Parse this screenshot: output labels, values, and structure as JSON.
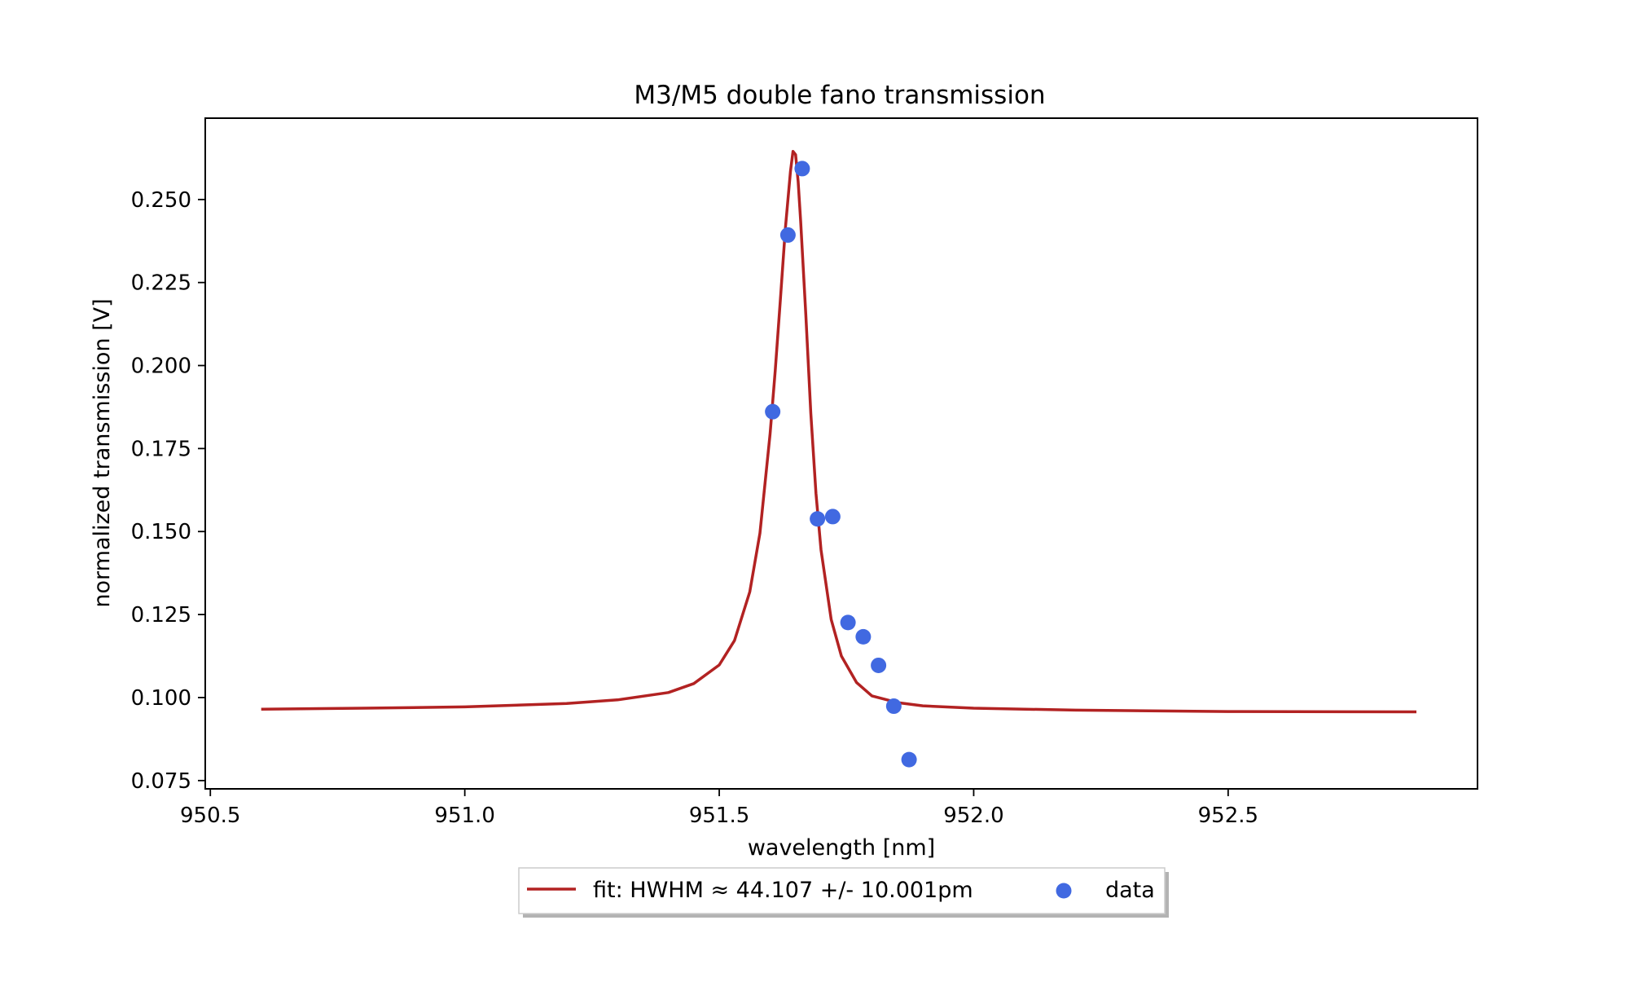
{
  "chart_data": {
    "type": "line",
    "title": "M3/M5 double fano transmission",
    "xlabel": "wavelength [nm]",
    "ylabel": "normalized transmission [V]",
    "xlim": [
      950.49,
      952.99
    ],
    "ylim": [
      0.0725,
      0.2745
    ],
    "xticks": [
      950.5,
      951.0,
      951.5,
      952.0,
      952.5
    ],
    "xtick_labels": [
      "950.5",
      "951.0",
      "951.5",
      "952.0",
      "952.5"
    ],
    "yticks": [
      0.075,
      0.1,
      0.125,
      0.15,
      0.175,
      0.2,
      0.225,
      0.25
    ],
    "ytick_labels": [
      "0.075",
      "0.100",
      "0.125",
      "0.150",
      "0.175",
      "0.200",
      "0.225",
      "0.250"
    ],
    "grid": false,
    "legend_position": "bottom-center-outside",
    "series": [
      {
        "name": "fit: HWHM ≈ 44.107 +/- 10.001pm",
        "kind": "line",
        "color": "#b22222",
        "x": [
          950.6,
          950.8,
          951.0,
          951.2,
          951.3,
          951.4,
          951.45,
          951.5,
          951.53,
          951.56,
          951.58,
          951.6,
          951.61,
          951.62,
          951.63,
          951.64,
          951.645,
          951.65,
          951.655,
          951.66,
          951.67,
          951.68,
          951.69,
          951.7,
          951.72,
          951.74,
          951.77,
          951.8,
          951.85,
          951.9,
          952.0,
          952.2,
          952.5,
          952.87
        ],
        "y": [
          0.0965,
          0.0968,
          0.0972,
          0.0982,
          0.0993,
          0.1015,
          0.1042,
          0.1098,
          0.1172,
          0.1318,
          0.1495,
          0.1795,
          0.1985,
          0.2195,
          0.2415,
          0.2585,
          0.2645,
          0.2635,
          0.2555,
          0.2435,
          0.2155,
          0.1855,
          0.1615,
          0.1445,
          0.1235,
          0.1125,
          0.1045,
          0.1005,
          0.0985,
          0.0975,
          0.0968,
          0.0962,
          0.0958,
          0.0957
        ]
      },
      {
        "name": "data",
        "kind": "scatter",
        "color": "#4169e1",
        "x": [
          951.605,
          951.635,
          951.663,
          951.693,
          951.723,
          951.753,
          951.783,
          951.813,
          951.843,
          951.873
        ],
        "y": [
          0.1861,
          0.2393,
          0.2593,
          0.1538,
          0.1545,
          0.1226,
          0.1183,
          0.1097,
          0.0974,
          0.0813
        ]
      }
    ]
  }
}
